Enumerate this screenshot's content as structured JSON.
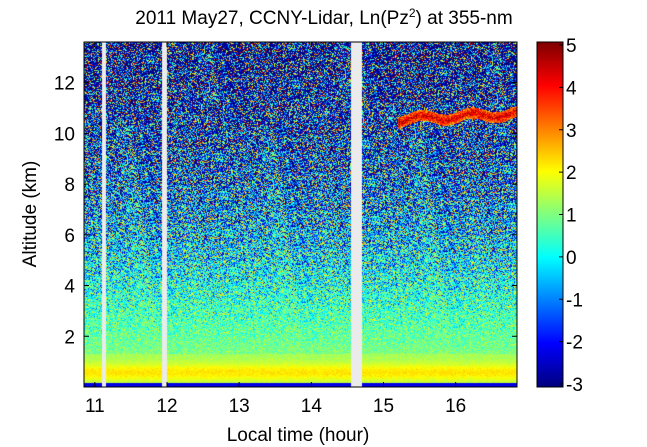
{
  "chart_data": {
    "type": "heatmap",
    "title": {
      "prefix": "2011 May27, CCNY-Lidar, Ln(Pz",
      "superscript": "2",
      "suffix": ") at 355-nm"
    },
    "xlabel": "Local time (hour)",
    "ylabel": "Altitude (km)",
    "xlim": [
      10.85,
      16.85
    ],
    "ylim": [
      0,
      13.6
    ],
    "xticks": [
      11,
      12,
      13,
      14,
      15,
      16
    ],
    "xtick_labels": [
      "11",
      "12",
      "13",
      "14",
      "15",
      "16"
    ],
    "yticks": [
      2,
      4,
      6,
      8,
      10,
      12
    ],
    "ytick_labels": [
      "2",
      "4",
      "6",
      "8",
      "10",
      "12"
    ],
    "data_gaps_hours": [
      [
        11.1,
        11.15
      ],
      [
        11.93,
        12.0
      ],
      [
        14.55,
        14.7
      ]
    ],
    "features": [
      {
        "name": "boundary layer",
        "altitude_km": [
          0.1,
          1.4
        ],
        "value_range": [
          1.5,
          2.5
        ]
      },
      {
        "name": "cirrus cloud",
        "time_hour": [
          15.2,
          16.85
        ],
        "altitude_km": [
          10.4,
          11.0
        ],
        "value_range": [
          2.5,
          4.5
        ]
      }
    ],
    "colorbar": {
      "range": [
        -3,
        5
      ],
      "ticks": [
        5,
        4,
        3,
        2,
        1,
        0,
        -1,
        -2,
        -3
      ],
      "tick_labels": [
        "5",
        "4",
        "3",
        "2",
        "1",
        "0",
        "-1",
        "-2",
        "-3"
      ],
      "colormap": "jet"
    }
  }
}
